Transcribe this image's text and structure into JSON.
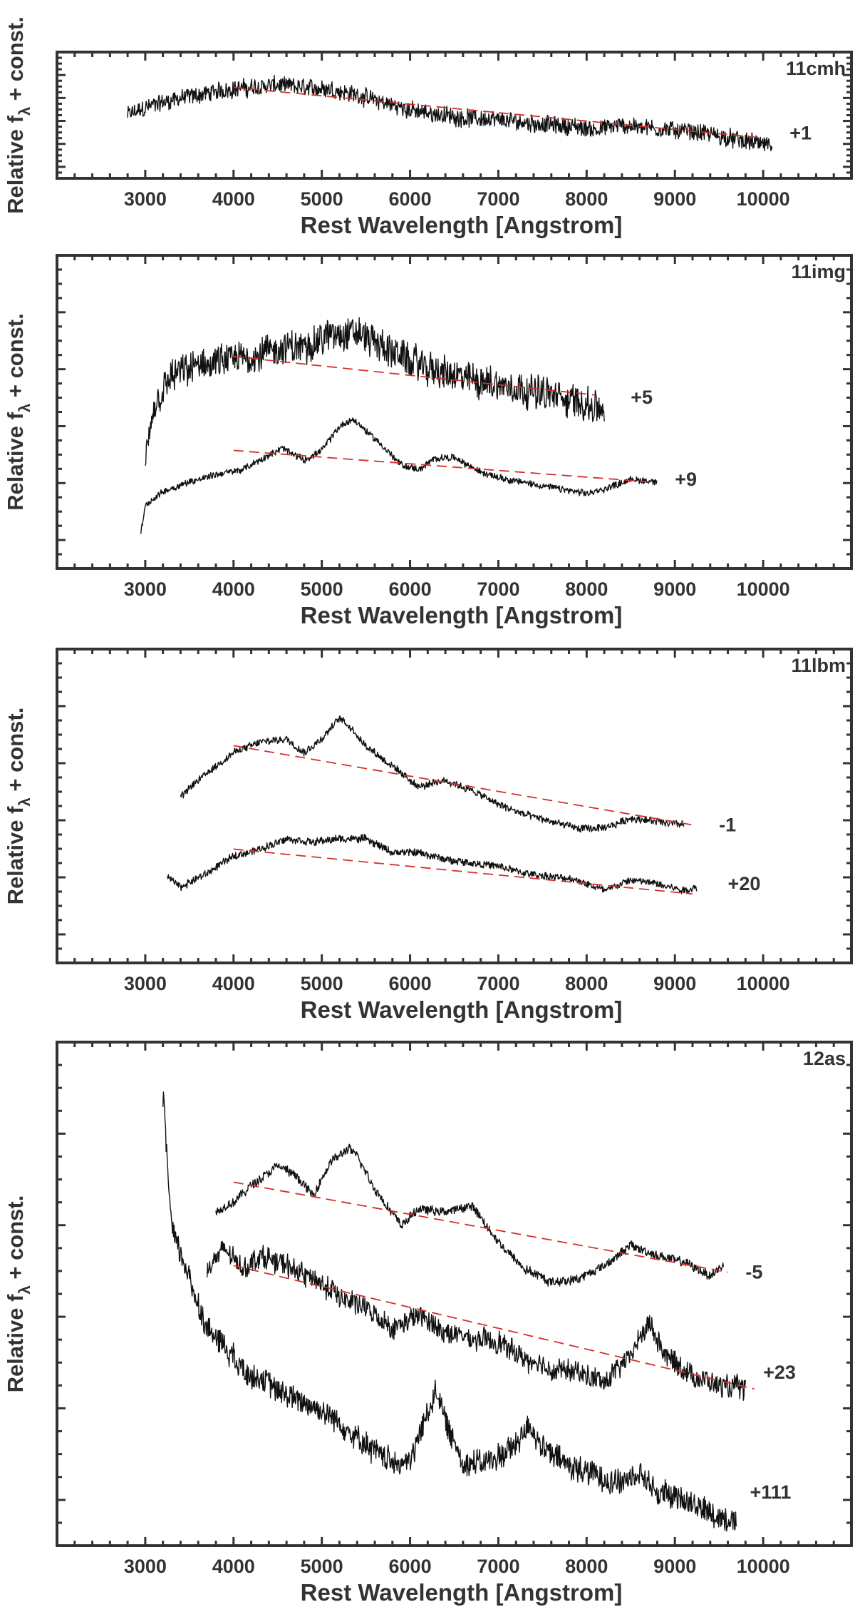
{
  "figure": {
    "ylabel_main": "Relative f",
    "ylabel_sub": "λ",
    "ylabel_tail": " + const.",
    "xlabel": "Rest Wavelength [Angstrom]"
  },
  "chart_data": [
    {
      "type": "line",
      "panel_label": "11cmh",
      "xlim": [
        2000,
        11000
      ],
      "ylim": [
        -1.25,
        1.25
      ],
      "xticks": [
        3000,
        4000,
        5000,
        6000,
        7000,
        8000,
        9000,
        10000
      ],
      "xlabel": "Rest Wavelength [Angstrom]",
      "ylabel": "Relative f λ + const.",
      "series": [
        {
          "name": "+1",
          "x": [
            2800,
            3000,
            3300,
            3600,
            3900,
            4200,
            4500,
            4800,
            5100,
            5400,
            5700,
            6000,
            6300,
            6600,
            6900,
            7200,
            7500,
            7800,
            8100,
            8400,
            8700,
            9000,
            9300,
            9600,
            9900,
            10100
          ],
          "y": [
            0.0,
            0.15,
            0.3,
            0.4,
            0.5,
            0.55,
            0.6,
            0.55,
            0.52,
            0.4,
            0.25,
            0.1,
            0.02,
            -0.05,
            -0.08,
            -0.12,
            -0.18,
            -0.22,
            -0.28,
            -0.2,
            -0.25,
            -0.3,
            -0.35,
            -0.45,
            -0.55,
            -0.6
          ],
          "noise": 0.22,
          "color": "#111111"
        }
      ],
      "fits": [
        {
          "x": [
            4000,
            10000
          ],
          "y": [
            0.55,
            -0.45
          ],
          "color": "#d32f2f"
        }
      ],
      "annotations": [
        {
          "text": "+1",
          "x": 10300,
          "y": -0.35
        }
      ]
    },
    {
      "type": "line",
      "panel_label": "11img",
      "xlim": [
        2000,
        11000
      ],
      "ylim": [
        -6.2,
        6.8
      ],
      "xticks": [
        3000,
        4000,
        5000,
        6000,
        7000,
        8000,
        9000,
        10000
      ],
      "xlabel": "Rest Wavelength [Angstrom]",
      "ylabel": "Relative f λ + const.",
      "series": [
        {
          "name": "+5",
          "x": [
            3000,
            3100,
            3300,
            3600,
            3900,
            4200,
            4500,
            4800,
            5100,
            5400,
            5700,
            6000,
            6300,
            6600,
            6900,
            7200,
            7500,
            7800,
            8100,
            8200
          ],
          "y": [
            -2.0,
            0.5,
            1.8,
            2.2,
            2.4,
            2.6,
            2.9,
            3.0,
            3.5,
            3.6,
            3.0,
            2.4,
            2.0,
            1.7,
            1.5,
            1.3,
            1.1,
            0.8,
            0.5,
            0.4
          ],
          "noise": 0.9,
          "color": "#111111"
        },
        {
          "name": "+9",
          "x": [
            2950,
            3000,
            3200,
            3500,
            3800,
            4100,
            4400,
            4550,
            4800,
            5000,
            5200,
            5350,
            5600,
            5900,
            6100,
            6300,
            6500,
            6800,
            7100,
            7400,
            7700,
            8000,
            8200,
            8500,
            8800
          ],
          "y": [
            -4.8,
            -3.6,
            -3.0,
            -2.6,
            -2.3,
            -2.1,
            -1.5,
            -1.2,
            -1.7,
            -1.3,
            -0.3,
            0.0,
            -0.8,
            -1.9,
            -2.1,
            -1.6,
            -1.6,
            -2.2,
            -2.5,
            -2.7,
            -2.9,
            -3.1,
            -2.9,
            -2.5,
            -2.6
          ],
          "noise": 0.18,
          "color": "#111111"
        }
      ],
      "fits": [
        {
          "x": [
            4000,
            8100
          ],
          "y": [
            2.6,
            1.0
          ],
          "color": "#d32f2f"
        },
        {
          "x": [
            4000,
            8700
          ],
          "y": [
            -1.3,
            -2.6
          ],
          "color": "#d32f2f"
        }
      ],
      "annotations": [
        {
          "text": "+5",
          "x": 8500,
          "y": 0.9
        },
        {
          "text": "+9",
          "x": 9000,
          "y": -2.5
        }
      ]
    },
    {
      "type": "line",
      "panel_label": "11lbm",
      "xlim": [
        2000,
        11000
      ],
      "ylim": [
        -4.5,
        4.6
      ],
      "xticks": [
        3000,
        4000,
        5000,
        6000,
        7000,
        8000,
        9000,
        10000
      ],
      "xlabel": "Rest Wavelength [Angstrom]",
      "ylabel": "Relative f λ + const.",
      "series": [
        {
          "name": "-1",
          "x": [
            3400,
            3600,
            3800,
            4000,
            4300,
            4600,
            4800,
            5000,
            5200,
            5300,
            5500,
            5800,
            6100,
            6400,
            6700,
            7000,
            7300,
            7600,
            7900,
            8200,
            8500,
            8800,
            9100
          ],
          "y": [
            0.3,
            0.8,
            1.2,
            1.6,
            1.9,
            2.0,
            1.6,
            2.0,
            2.6,
            2.4,
            1.8,
            1.2,
            0.6,
            0.8,
            0.5,
            0.1,
            -0.2,
            -0.4,
            -0.6,
            -0.6,
            -0.3,
            -0.4,
            -0.5
          ],
          "noise": 0.14,
          "color": "#111111"
        },
        {
          "name": "+20",
          "x": [
            3250,
            3400,
            3700,
            4000,
            4300,
            4600,
            4900,
            5200,
            5500,
            5800,
            6100,
            6400,
            6700,
            7000,
            7300,
            7600,
            7900,
            8200,
            8500,
            8800,
            9100,
            9250
          ],
          "y": [
            -2.0,
            -2.3,
            -1.9,
            -1.4,
            -1.2,
            -0.9,
            -1.0,
            -0.9,
            -0.9,
            -1.3,
            -1.3,
            -1.5,
            -1.6,
            -1.7,
            -1.9,
            -2.0,
            -2.1,
            -2.4,
            -2.1,
            -2.2,
            -2.4,
            -2.3
          ],
          "noise": 0.14,
          "color": "#111111"
        }
      ],
      "fits": [
        {
          "x": [
            4000,
            9200
          ],
          "y": [
            1.8,
            -0.5
          ],
          "color": "#d32f2f"
        },
        {
          "x": [
            4000,
            9200
          ],
          "y": [
            -1.2,
            -2.5
          ],
          "color": "#d32f2f"
        }
      ],
      "annotations": [
        {
          "text": "-1",
          "x": 9500,
          "y": -0.5
        },
        {
          "text": "+20",
          "x": 9600,
          "y": -2.2
        }
      ]
    },
    {
      "type": "line",
      "panel_label": "12as",
      "xlim": [
        2000,
        11000
      ],
      "ylim": [
        -7.5,
        7.6
      ],
      "xticks": [
        3000,
        4000,
        5000,
        6000,
        7000,
        8000,
        9000,
        10000
      ],
      "xlabel": "Rest Wavelength [Angstrom]",
      "ylabel": "Relative f λ + const.",
      "series": [
        {
          "name": "-5",
          "x": [
            3800,
            4000,
            4200,
            4500,
            4700,
            4900,
            5100,
            5300,
            5400,
            5600,
            5900,
            6100,
            6400,
            6700,
            7000,
            7300,
            7600,
            7900,
            8200,
            8500,
            8800,
            9100,
            9400,
            9550
          ],
          "y": [
            2.5,
            2.8,
            3.3,
            3.9,
            3.6,
            3.0,
            4.0,
            4.4,
            4.2,
            3.2,
            2.1,
            2.6,
            2.5,
            2.7,
            1.6,
            0.8,
            0.4,
            0.5,
            0.9,
            1.5,
            1.2,
            1.0,
            0.6,
            0.9
          ],
          "noise": 0.18,
          "color": "#111111"
        },
        {
          "name": "+23",
          "x": [
            3700,
            3900,
            4100,
            4300,
            4600,
            4900,
            5200,
            5500,
            5800,
            6100,
            6400,
            6700,
            7000,
            7300,
            7600,
            7900,
            8200,
            8500,
            8700,
            8900,
            9200,
            9500,
            9800
          ],
          "y": [
            0.8,
            1.4,
            0.8,
            1.2,
            0.9,
            0.5,
            0.0,
            -0.4,
            -1.0,
            -0.6,
            -1.1,
            -1.3,
            -1.4,
            -1.9,
            -2.2,
            -2.3,
            -2.6,
            -1.8,
            -0.8,
            -1.8,
            -2.4,
            -2.7,
            -2.8
          ],
          "noise": 0.42,
          "color": "#111111"
        },
        {
          "name": "+111",
          "x": [
            3200,
            3300,
            3500,
            3700,
            3900,
            4100,
            4300,
            4600,
            4900,
            5200,
            5500,
            5800,
            6000,
            6200,
            6300,
            6400,
            6600,
            6900,
            7200,
            7350,
            7500,
            7800,
            8100,
            8400,
            8600,
            8800,
            9100,
            9400,
            9700
          ],
          "y": [
            6.0,
            2.0,
            0.5,
            -1.0,
            -1.5,
            -2.2,
            -2.5,
            -3.0,
            -3.3,
            -3.8,
            -4.5,
            -5.0,
            -5.0,
            -3.5,
            -2.8,
            -3.8,
            -5.0,
            -5.0,
            -4.5,
            -3.8,
            -4.6,
            -5.1,
            -5.4,
            -5.6,
            -5.3,
            -5.9,
            -6.1,
            -6.5,
            -6.8
          ],
          "noise": 0.5,
          "color": "#111111"
        }
      ],
      "fits": [
        {
          "x": [
            4000,
            9600
          ],
          "y": [
            3.4,
            0.7
          ],
          "color": "#d32f2f"
        },
        {
          "x": [
            4000,
            9900
          ],
          "y": [
            0.9,
            -2.8
          ],
          "color": "#d32f2f"
        }
      ],
      "annotations": [
        {
          "text": "-5",
          "x": 9800,
          "y": 0.7
        },
        {
          "text": "+23",
          "x": 10000,
          "y": -2.3
        },
        {
          "text": "+111",
          "x": 9850,
          "y": -5.9
        }
      ]
    }
  ]
}
